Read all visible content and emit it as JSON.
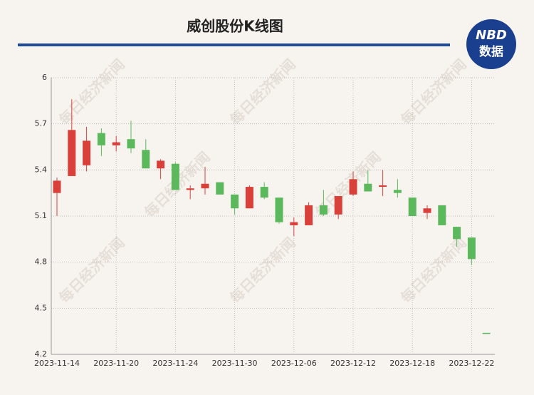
{
  "chart_data": {
    "type": "candlestick",
    "title": "威创股份K线图",
    "logo_top": "NBD",
    "logo_bottom": "数据",
    "watermark": "每日经济新闻",
    "categories": [
      "2023-11-14",
      null,
      null,
      null,
      "2023-11-20",
      null,
      null,
      null,
      "2023-11-24",
      null,
      null,
      null,
      "2023-11-30",
      null,
      null,
      null,
      "2023-12-06",
      null,
      null,
      null,
      "2023-12-12",
      null,
      null,
      null,
      "2023-12-18",
      null,
      null,
      null,
      "2023-12-22",
      null
    ],
    "open": [
      5.25,
      5.36,
      5.43,
      5.64,
      5.56,
      5.6,
      5.53,
      5.41,
      5.44,
      5.27,
      5.28,
      5.32,
      5.24,
      5.15,
      5.29,
      5.22,
      5.04,
      5.04,
      5.17,
      5.11,
      5.24,
      5.31,
      5.29,
      5.27,
      5.22,
      5.12,
      5.17,
      5.03,
      4.96,
      4.34
    ],
    "high": [
      5.35,
      5.86,
      5.68,
      5.67,
      5.62,
      5.72,
      5.6,
      5.47,
      5.45,
      5.3,
      5.42,
      5.32,
      5.24,
      5.3,
      5.32,
      5.22,
      5.09,
      5.19,
      5.27,
      5.23,
      5.39,
      5.4,
      5.4,
      5.34,
      5.22,
      5.17,
      5.17,
      5.03,
      4.96,
      4.34
    ],
    "low": [
      5.1,
      5.36,
      5.39,
      5.49,
      5.52,
      5.51,
      5.41,
      5.34,
      5.27,
      5.21,
      5.24,
      5.24,
      5.11,
      5.15,
      5.21,
      5.05,
      4.97,
      5.04,
      5.1,
      5.08,
      5.23,
      5.26,
      5.23,
      5.22,
      5.1,
      5.08,
      5.04,
      4.9,
      4.78,
      4.34
    ],
    "close": [
      5.33,
      5.66,
      5.59,
      5.56,
      5.58,
      5.54,
      5.41,
      5.46,
      5.27,
      5.28,
      5.31,
      5.24,
      5.15,
      5.29,
      5.22,
      5.06,
      5.06,
      5.17,
      5.11,
      5.23,
      5.34,
      5.26,
      5.3,
      5.25,
      5.1,
      5.15,
      5.04,
      4.95,
      4.82,
      4.34
    ],
    "up_color": "#d9403a",
    "down_color": "#5cb85c",
    "ylim": [
      4.2,
      6
    ],
    "yticks": [
      4.2,
      4.5,
      4.8,
      5.1,
      5.4,
      5.7,
      6
    ],
    "grid": true
  }
}
